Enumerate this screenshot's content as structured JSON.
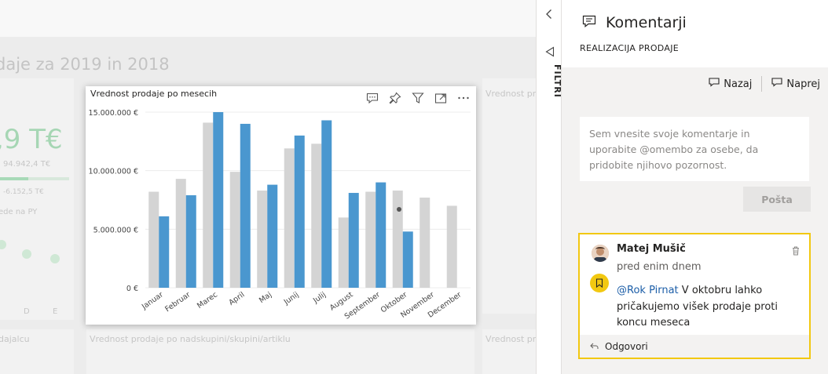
{
  "report": {
    "title_fragment": "daje za 2019 in 2018",
    "kpi_value": ",9 T€",
    "kpi_sub1": "94.942,4 T€",
    "kpi_sub2": "-6.152,5 T€",
    "kpi_sub3": "ede na PY",
    "axis_letters": [
      "D",
      "E"
    ],
    "row_label_left": "dajalcu",
    "row_label_mid": "Vrednost prodaje po nadskupini/skupini/artiklu",
    "corner_label_top": "Vrednost prodaje",
    "corner_label_bottom": "Vrednost prodaje"
  },
  "card": {
    "title": "Vrednost prodaje po mesecih",
    "tools": [
      "comment-icon",
      "pin-icon",
      "filter-icon",
      "focus-mode-icon",
      "more-options-icon"
    ]
  },
  "chart_data": {
    "type": "bar",
    "title": "Vrednost prodaje po mesecih",
    "xlabel": "",
    "ylabel": "",
    "ylim": [
      0,
      15000000
    ],
    "y_ticks": [
      0,
      5000000,
      10000000,
      15000000
    ],
    "y_tick_labels": [
      "0 €",
      "5.000.000 €",
      "10.000.000 €",
      "15.000.000 €"
    ],
    "categories": [
      "Januar",
      "Februar",
      "Marec",
      "April",
      "Maj",
      "Junij",
      "Julij",
      "August",
      "September",
      "Oktober",
      "November",
      "December"
    ],
    "series": [
      {
        "color": "#d4d4d4",
        "values": [
          8200000,
          9300000,
          14100000,
          9900000,
          8300000,
          11900000,
          12300000,
          6000000,
          8200000,
          8300000,
          7700000,
          7000000
        ]
      },
      {
        "color": "#4a97cf",
        "values": [
          6100000,
          7900000,
          15000000,
          14000000,
          8800000,
          13000000,
          14300000,
          8100000,
          9000000,
          4800000,
          null,
          null
        ]
      }
    ],
    "grid": true,
    "legend": "none"
  },
  "filters": {
    "label": "FILTRI"
  },
  "pane": {
    "title": "Komentarji",
    "subtitle": "REALIZACIJA PRODAJE",
    "back_label": "Nazaj",
    "next_label": "Naprej",
    "input_placeholder": "Sem vnesite svoje komentarje in uporabite @omembo za osebe, da pridobite njihovo pozornost.",
    "post_label": "Pošta",
    "comment": {
      "author": "Matej Mušič",
      "time": "pred enim dnem",
      "mention": "@Rok Pirnat",
      "text": " V oktobru lahko pričakujemo višek prodaje proti koncu meseca",
      "reply_label": "Odgovori"
    }
  },
  "colors": {
    "accent": "#f2c811",
    "series_current": "#4a97cf",
    "series_previous": "#d4d4d4"
  }
}
